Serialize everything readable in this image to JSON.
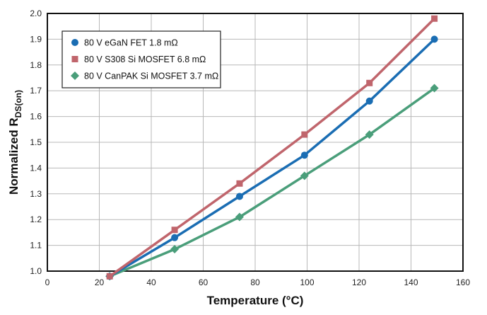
{
  "chart_data": {
    "type": "line",
    "xlabel": "Temperature (°C)",
    "ylabel_main": "Normalized R",
    "ylabel_sub": "DS(on)",
    "xlim": [
      0,
      160
    ],
    "ylim": [
      1.0,
      2.0
    ],
    "xticks": [
      0,
      20,
      40,
      60,
      80,
      100,
      120,
      140,
      160
    ],
    "yticks": [
      1.0,
      1.1,
      1.2,
      1.3,
      1.4,
      1.5,
      1.6,
      1.7,
      1.8,
      1.9,
      2.0
    ],
    "grid": true,
    "legend_position": "top-left",
    "series": [
      {
        "name": "80 V eGaN FET 1.8 mΩ",
        "marker": "circle",
        "color": "#1a6db3",
        "x": [
          24,
          49,
          74,
          99,
          124,
          149
        ],
        "y": [
          0.98,
          1.13,
          1.29,
          1.45,
          1.66,
          1.9
        ]
      },
      {
        "name": "80 V S308 Si MOSFET 6.8 mΩ",
        "marker": "square",
        "color": "#c0656c",
        "x": [
          24,
          49,
          74,
          99,
          124,
          149
        ],
        "y": [
          0.98,
          1.16,
          1.34,
          1.53,
          1.73,
          1.98
        ]
      },
      {
        "name": "80 V CanPAK Si MOSFET 3.7 mΩ",
        "marker": "diamond",
        "color": "#4a9e7a",
        "x": [
          24,
          49,
          74,
          99,
          124,
          149
        ],
        "y": [
          0.98,
          1.085,
          1.21,
          1.37,
          1.53,
          1.71
        ]
      }
    ]
  }
}
